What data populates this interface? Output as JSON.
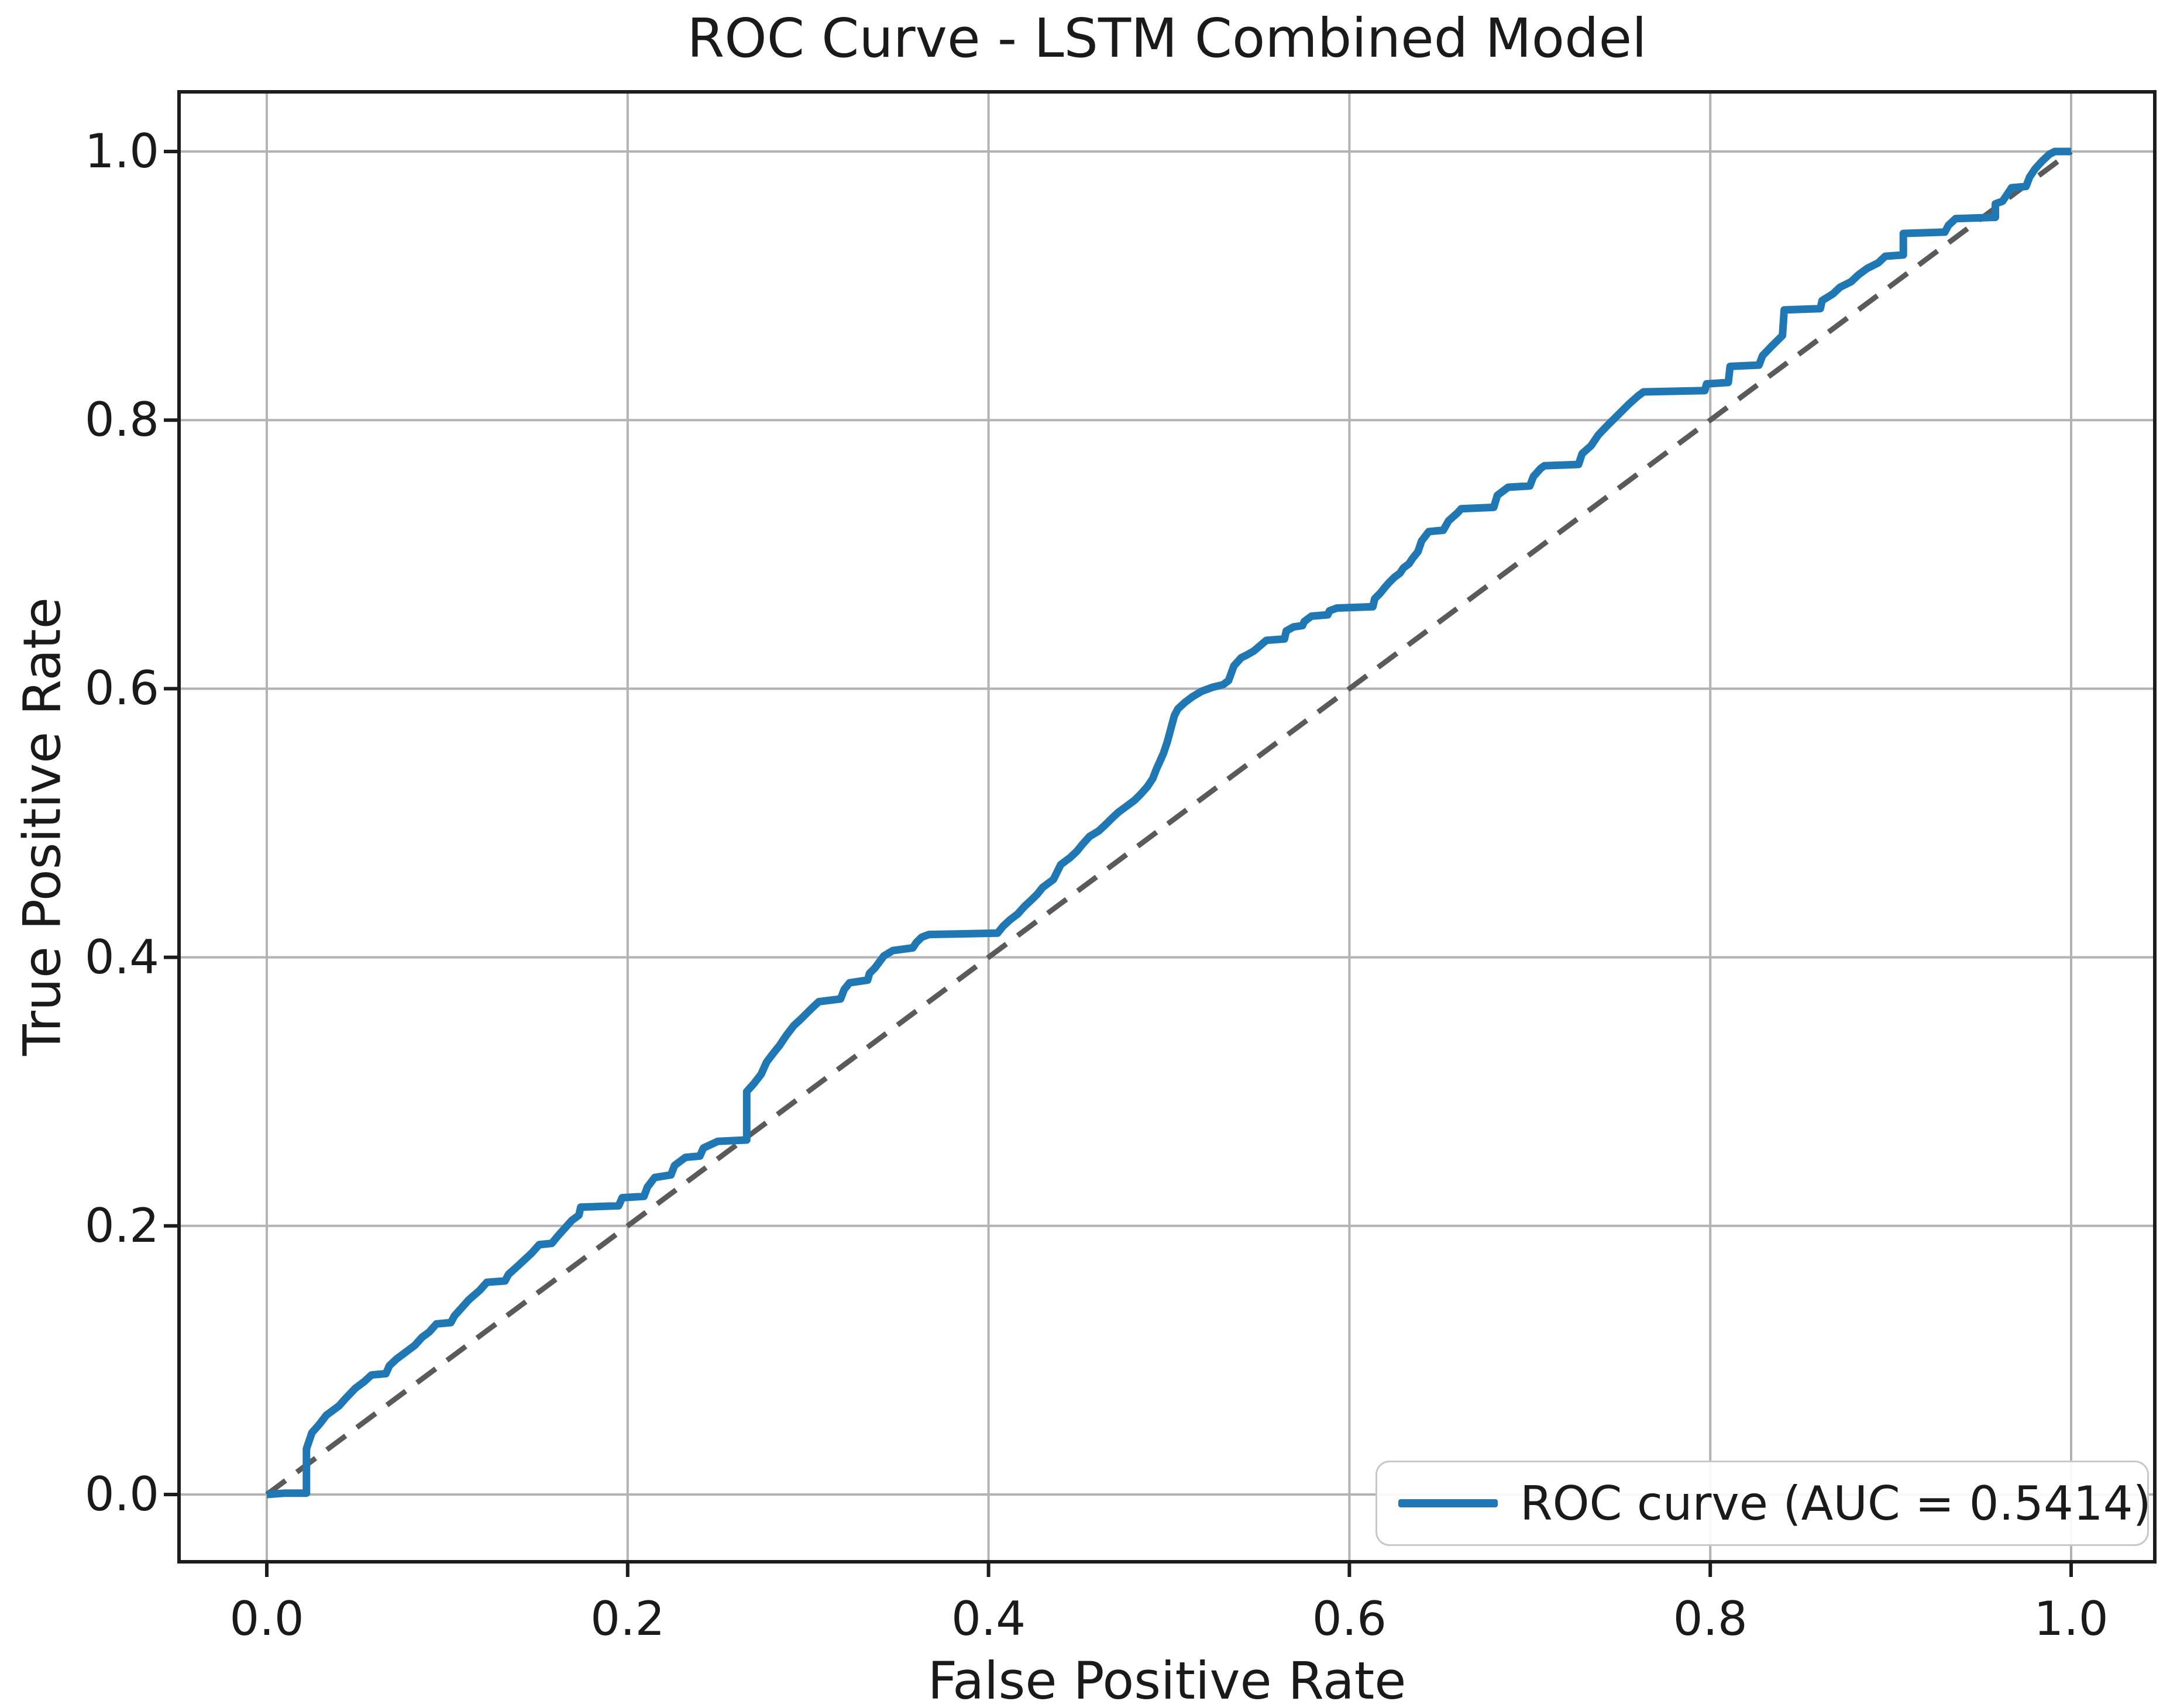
{
  "title": "ROC Curve - LSTM Combined Model",
  "legend": {
    "label": "ROC curve (AUC = 0.5414)",
    "position": "lower right"
  },
  "colors": {
    "roc_line": "#1f77b4",
    "chance_line": "#5a5a5a",
    "grid": "#b3b3b3",
    "spine": "#1c1c1c",
    "text": "#1a1a1a",
    "legend_border": "#c8c8c8",
    "background": "#ffffff"
  },
  "chart_data": {
    "type": "line",
    "title": "ROC Curve - LSTM Combined Model",
    "xlabel": "False Positive Rate",
    "ylabel": "True Positive Rate",
    "xlim": [
      -0.05,
      1.05
    ],
    "ylim": [
      -0.05,
      1.05
    ],
    "grid": true,
    "legend_position": "lower right",
    "auc": 0.5414,
    "x_ticks": {
      "values": [
        0.0,
        0.2,
        0.4,
        0.6,
        0.8,
        1.0
      ],
      "labels": [
        "0.0",
        "0.2",
        "0.4",
        "0.6",
        "0.8",
        "1.0"
      ]
    },
    "y_ticks": {
      "values": [
        0.0,
        0.2,
        0.4,
        0.6,
        0.8,
        1.0
      ],
      "labels": [
        "0.0",
        "0.2",
        "0.4",
        "0.6",
        "0.8",
        "1.0"
      ]
    },
    "series": [
      {
        "name": "ROC curve (AUC = 0.5414)",
        "color": "#1f77b4",
        "style": "solid",
        "points": [
          [
            0.0,
            0.0
          ],
          [
            0.01,
            0.001
          ],
          [
            0.022,
            0.001
          ],
          [
            0.022,
            0.034
          ],
          [
            0.025,
            0.046
          ],
          [
            0.029,
            0.052
          ],
          [
            0.033,
            0.059
          ],
          [
            0.04,
            0.066
          ],
          [
            0.044,
            0.072
          ],
          [
            0.049,
            0.079
          ],
          [
            0.054,
            0.084
          ],
          [
            0.058,
            0.089
          ],
          [
            0.066,
            0.09
          ],
          [
            0.068,
            0.096
          ],
          [
            0.072,
            0.101
          ],
          [
            0.078,
            0.107
          ],
          [
            0.082,
            0.111
          ],
          [
            0.086,
            0.117
          ],
          [
            0.09,
            0.121
          ],
          [
            0.094,
            0.127
          ],
          [
            0.102,
            0.128
          ],
          [
            0.104,
            0.133
          ],
          [
            0.108,
            0.139
          ],
          [
            0.112,
            0.145
          ],
          [
            0.118,
            0.152
          ],
          [
            0.122,
            0.158
          ],
          [
            0.132,
            0.159
          ],
          [
            0.134,
            0.164
          ],
          [
            0.139,
            0.17
          ],
          [
            0.143,
            0.175
          ],
          [
            0.147,
            0.18
          ],
          [
            0.151,
            0.186
          ],
          [
            0.158,
            0.187
          ],
          [
            0.161,
            0.192
          ],
          [
            0.165,
            0.198
          ],
          [
            0.169,
            0.204
          ],
          [
            0.173,
            0.208
          ],
          [
            0.174,
            0.214
          ],
          [
            0.195,
            0.215
          ],
          [
            0.197,
            0.221
          ],
          [
            0.209,
            0.222
          ],
          [
            0.211,
            0.229
          ],
          [
            0.215,
            0.236
          ],
          [
            0.224,
            0.238
          ],
          [
            0.226,
            0.245
          ],
          [
            0.232,
            0.251
          ],
          [
            0.24,
            0.252
          ],
          [
            0.242,
            0.258
          ],
          [
            0.25,
            0.263
          ],
          [
            0.266,
            0.264
          ],
          [
            0.266,
            0.3
          ],
          [
            0.27,
            0.306
          ],
          [
            0.274,
            0.313
          ],
          [
            0.277,
            0.322
          ],
          [
            0.281,
            0.329
          ],
          [
            0.284,
            0.334
          ],
          [
            0.288,
            0.342
          ],
          [
            0.292,
            0.349
          ],
          [
            0.296,
            0.354
          ],
          [
            0.302,
            0.362
          ],
          [
            0.306,
            0.367
          ],
          [
            0.318,
            0.369
          ],
          [
            0.32,
            0.376
          ],
          [
            0.323,
            0.381
          ],
          [
            0.333,
            0.383
          ],
          [
            0.334,
            0.388
          ],
          [
            0.337,
            0.392
          ],
          [
            0.342,
            0.401
          ],
          [
            0.347,
            0.405
          ],
          [
            0.358,
            0.407
          ],
          [
            0.36,
            0.411
          ],
          [
            0.363,
            0.415
          ],
          [
            0.367,
            0.417
          ],
          [
            0.405,
            0.418
          ],
          [
            0.408,
            0.423
          ],
          [
            0.412,
            0.428
          ],
          [
            0.416,
            0.432
          ],
          [
            0.42,
            0.438
          ],
          [
            0.424,
            0.443
          ],
          [
            0.427,
            0.447
          ],
          [
            0.43,
            0.452
          ],
          [
            0.436,
            0.458
          ],
          [
            0.44,
            0.469
          ],
          [
            0.445,
            0.474
          ],
          [
            0.449,
            0.479
          ],
          [
            0.452,
            0.484
          ],
          [
            0.456,
            0.49
          ],
          [
            0.461,
            0.494
          ],
          [
            0.465,
            0.499
          ],
          [
            0.468,
            0.503
          ],
          [
            0.472,
            0.508
          ],
          [
            0.477,
            0.513
          ],
          [
            0.481,
            0.517
          ],
          [
            0.484,
            0.521
          ],
          [
            0.488,
            0.527
          ],
          [
            0.491,
            0.533
          ],
          [
            0.493,
            0.54
          ],
          [
            0.495,
            0.546
          ],
          [
            0.497,
            0.552
          ],
          [
            0.499,
            0.56
          ],
          [
            0.501,
            0.57
          ],
          [
            0.503,
            0.58
          ],
          [
            0.505,
            0.585
          ],
          [
            0.509,
            0.59
          ],
          [
            0.513,
            0.594
          ],
          [
            0.518,
            0.598
          ],
          [
            0.524,
            0.601
          ],
          [
            0.53,
            0.603
          ],
          [
            0.533,
            0.606
          ],
          [
            0.536,
            0.617
          ],
          [
            0.54,
            0.623
          ],
          [
            0.543,
            0.625
          ],
          [
            0.547,
            0.628
          ],
          [
            0.554,
            0.636
          ],
          [
            0.564,
            0.637
          ],
          [
            0.565,
            0.643
          ],
          [
            0.569,
            0.646
          ],
          [
            0.574,
            0.647
          ],
          [
            0.575,
            0.65
          ],
          [
            0.579,
            0.654
          ],
          [
            0.588,
            0.655
          ],
          [
            0.589,
            0.658
          ],
          [
            0.593,
            0.66
          ],
          [
            0.613,
            0.661
          ],
          [
            0.614,
            0.667
          ],
          [
            0.617,
            0.671
          ],
          [
            0.62,
            0.676
          ],
          [
            0.622,
            0.679
          ],
          [
            0.625,
            0.683
          ],
          [
            0.628,
            0.686
          ],
          [
            0.63,
            0.69
          ],
          [
            0.633,
            0.693
          ],
          [
            0.635,
            0.697
          ],
          [
            0.638,
            0.702
          ],
          [
            0.64,
            0.71
          ],
          [
            0.644,
            0.717
          ],
          [
            0.652,
            0.718
          ],
          [
            0.655,
            0.725
          ],
          [
            0.66,
            0.731
          ],
          [
            0.662,
            0.734
          ],
          [
            0.68,
            0.735
          ],
          [
            0.682,
            0.744
          ],
          [
            0.688,
            0.75
          ],
          [
            0.7,
            0.751
          ],
          [
            0.702,
            0.758
          ],
          [
            0.706,
            0.764
          ],
          [
            0.708,
            0.766
          ],
          [
            0.727,
            0.767
          ],
          [
            0.729,
            0.775
          ],
          [
            0.734,
            0.781
          ],
          [
            0.738,
            0.789
          ],
          [
            0.743,
            0.796
          ],
          [
            0.749,
            0.804
          ],
          [
            0.755,
            0.812
          ],
          [
            0.76,
            0.818
          ],
          [
            0.763,
            0.821
          ],
          [
            0.797,
            0.822
          ],
          [
            0.798,
            0.827
          ],
          [
            0.81,
            0.828
          ],
          [
            0.811,
            0.84
          ],
          [
            0.827,
            0.841
          ],
          [
            0.829,
            0.848
          ],
          [
            0.834,
            0.855
          ],
          [
            0.84,
            0.863
          ],
          [
            0.841,
            0.882
          ],
          [
            0.861,
            0.883
          ],
          [
            0.862,
            0.889
          ],
          [
            0.868,
            0.894
          ],
          [
            0.872,
            0.899
          ],
          [
            0.878,
            0.903
          ],
          [
            0.882,
            0.908
          ],
          [
            0.887,
            0.913
          ],
          [
            0.893,
            0.917
          ],
          [
            0.897,
            0.922
          ],
          [
            0.907,
            0.923
          ],
          [
            0.907,
            0.939
          ],
          [
            0.93,
            0.94
          ],
          [
            0.932,
            0.945
          ],
          [
            0.936,
            0.95
          ],
          [
            0.958,
            0.951
          ],
          [
            0.958,
            0.961
          ],
          [
            0.962,
            0.963
          ],
          [
            0.964,
            0.967
          ],
          [
            0.967,
            0.973
          ],
          [
            0.975,
            0.974
          ],
          [
            0.977,
            0.981
          ],
          [
            0.98,
            0.987
          ],
          [
            0.984,
            0.993
          ],
          [
            0.988,
            0.998
          ],
          [
            0.991,
            1.0
          ],
          [
            1.0,
            1.0
          ]
        ]
      },
      {
        "name": "chance-diagonal",
        "color": "#5a5a5a",
        "style": "dashed",
        "points": [
          [
            0.0,
            0.0
          ],
          [
            1.0,
            1.0
          ]
        ]
      }
    ]
  }
}
